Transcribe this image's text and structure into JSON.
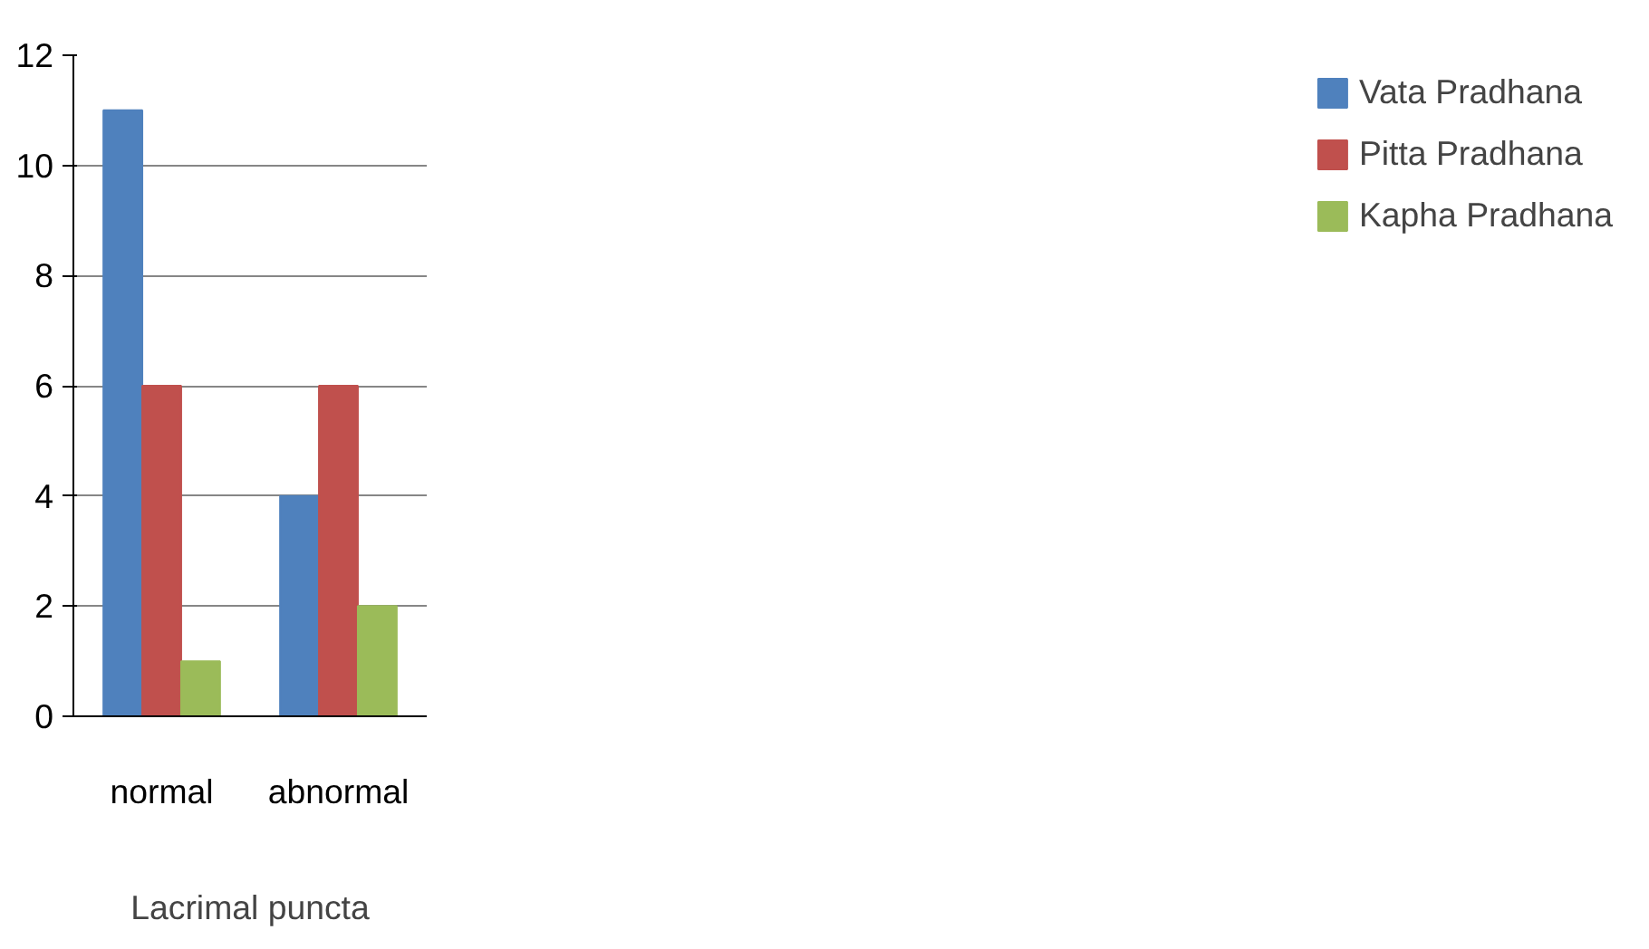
{
  "chart_data": {
    "type": "bar",
    "xlabel": "Lacrimal puncta",
    "categories": [
      "normal",
      "abnormal"
    ],
    "series": [
      {
        "name": "Vata Pradhana",
        "color": "#4f81bd",
        "values": [
          11,
          4
        ]
      },
      {
        "name": "Pitta Pradhana",
        "color": "#c0504d",
        "values": [
          6,
          6
        ]
      },
      {
        "name": "Kapha Pradhana",
        "color": "#9bbb59",
        "values": [
          1,
          2
        ]
      }
    ],
    "ylim": [
      0,
      12
    ],
    "yticks": [
      0,
      2,
      4,
      6,
      8,
      10,
      12
    ],
    "grid": "y",
    "legend": "right"
  }
}
